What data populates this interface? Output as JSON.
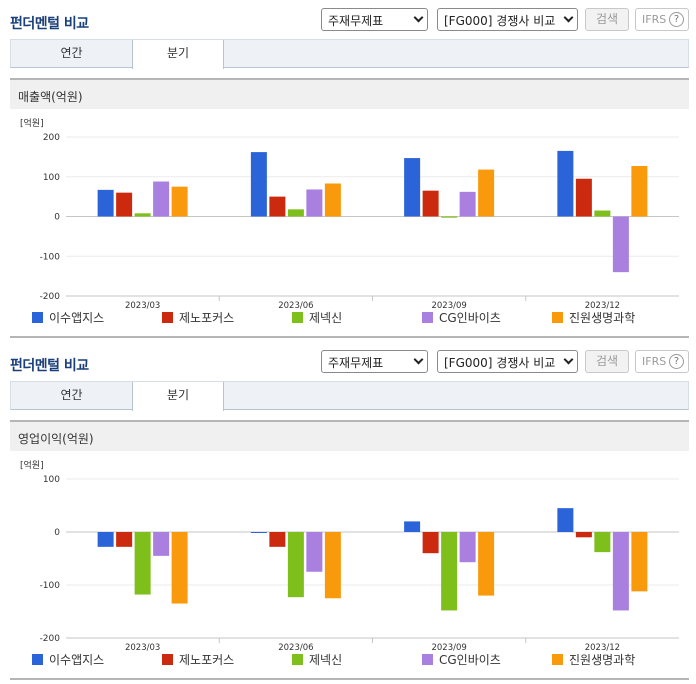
{
  "panels": [
    {
      "title": "펀더멘털 비교",
      "select_statement": "주재무제표",
      "select_compare": "[FG000] 경쟁사 비교",
      "search_label": "검색",
      "ifrs_label": "IFRS",
      "help_glyph": "?",
      "tabs": [
        {
          "label": "연간"
        },
        {
          "label": "분기"
        }
      ],
      "active_tab": "분기",
      "subtitle": "매출액(억원)",
      "chart_data": {
        "type": "bar",
        "unit_label": "[억원]",
        "categories": [
          "2023/03",
          "2023/06",
          "2023/09",
          "2023/12"
        ],
        "ylim": [
          -200,
          200
        ],
        "yticks": [
          200,
          100,
          0,
          -100,
          -200
        ],
        "ytick_labels": [
          "200",
          "100",
          "0",
          "-100",
          "-200"
        ],
        "legend_position": "bottom",
        "series": [
          {
            "name": "이수앱지스",
            "color": "#2b63d8",
            "values": [
              67,
              162,
              147,
              165
            ]
          },
          {
            "name": "제노포커스",
            "color": "#cc2a0e",
            "values": [
              60,
              50,
              65,
              95
            ]
          },
          {
            "name": "제넥신",
            "color": "#7fbf1b",
            "values": [
              8,
              18,
              -3,
              15
            ]
          },
          {
            "name": "CG인바이츠",
            "color": "#a97fe0",
            "values": [
              88,
              68,
              62,
              -140
            ]
          },
          {
            "name": "진원생명과학",
            "color": "#f99a0c",
            "values": [
              75,
              83,
              118,
              127
            ]
          }
        ]
      }
    },
    {
      "title": "펀더멘털 비교",
      "select_statement": "주재무제표",
      "select_compare": "[FG000] 경쟁사 비교",
      "search_label": "검색",
      "ifrs_label": "IFRS",
      "help_glyph": "?",
      "tabs": [
        {
          "label": "연간"
        },
        {
          "label": "분기"
        }
      ],
      "active_tab": "분기",
      "subtitle": "영업이익(억원)",
      "chart_data": {
        "type": "bar",
        "unit_label": "[억원]",
        "categories": [
          "2023/03",
          "2023/06",
          "2023/09",
          "2023/12"
        ],
        "ylim": [
          -200,
          100
        ],
        "yticks": [
          100,
          0,
          -100,
          -200
        ],
        "ytick_labels": [
          "100",
          "0",
          "-100",
          "-200"
        ],
        "legend_position": "bottom",
        "series": [
          {
            "name": "이수앱지스",
            "color": "#2b63d8",
            "values": [
              -28,
              0,
              20,
              45
            ]
          },
          {
            "name": "제노포커스",
            "color": "#cc2a0e",
            "values": [
              -28,
              -28,
              -40,
              -10
            ]
          },
          {
            "name": "제넥신",
            "color": "#7fbf1b",
            "values": [
              -118,
              -123,
              -148,
              -38
            ]
          },
          {
            "name": "CG인바이츠",
            "color": "#a97fe0",
            "values": [
              -45,
              -75,
              -57,
              -148
            ]
          },
          {
            "name": "진원생명과학",
            "color": "#f99a0c",
            "values": [
              -135,
              -125,
              -120,
              -112
            ]
          }
        ]
      }
    }
  ]
}
